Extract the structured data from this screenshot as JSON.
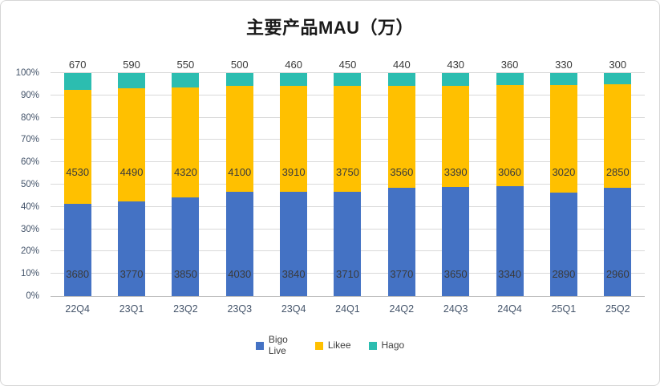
{
  "chart_data": {
    "type": "bar",
    "variant": "stacked-100-percent",
    "title": "主要产品MAU（万）",
    "categories": [
      "22Q4",
      "23Q1",
      "23Q2",
      "23Q3",
      "23Q4",
      "24Q1",
      "24Q2",
      "24Q3",
      "24Q4",
      "25Q1",
      "25Q2"
    ],
    "series": [
      {
        "name": "Bigo Live",
        "color": "#4472C4",
        "values": [
          3680,
          3770,
          3850,
          4030,
          3840,
          3710,
          3770,
          3650,
          3340,
          2890,
          2960
        ]
      },
      {
        "name": "Likee",
        "color": "#FFC000",
        "values": [
          4530,
          4490,
          4320,
          4100,
          3910,
          3750,
          3560,
          3390,
          3060,
          3020,
          2850
        ]
      },
      {
        "name": "Hago",
        "color": "#2CBDB0",
        "values": [
          670,
          590,
          550,
          500,
          460,
          450,
          440,
          430,
          360,
          330,
          300
        ]
      }
    ],
    "y_axis": {
      "ticks": [
        "0%",
        "10%",
        "20%",
        "30%",
        "40%",
        "50%",
        "60%",
        "70%",
        "80%",
        "90%",
        "100%"
      ],
      "min": 0,
      "max": 100
    },
    "grid": true,
    "legend_position": "bottom",
    "style": {
      "axis_label_color": "#44546A",
      "data_label_color": "#3a3a3a",
      "gridline_color": "#d9d9d9"
    }
  }
}
